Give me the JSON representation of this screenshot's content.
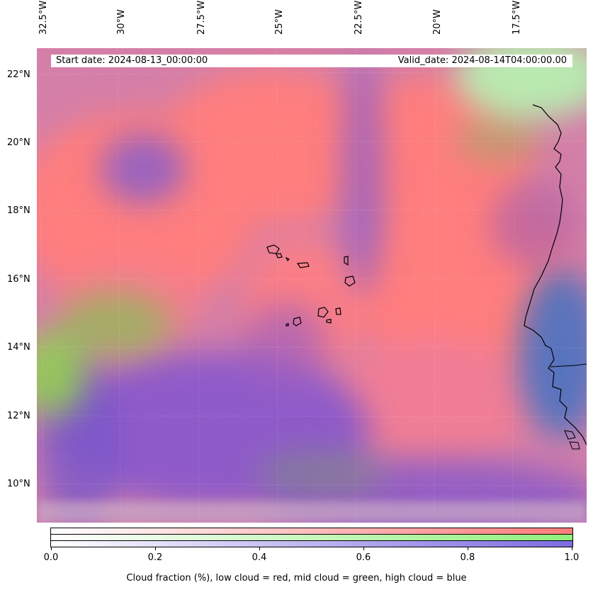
{
  "map": {
    "header": {
      "start_date": "Start date: 2024-08-13_00:00:00",
      "valid_date": "Valid_date: 2024-08-14T04:00:00.00"
    },
    "lon_labels": [
      "32.5°W",
      "30°W",
      "27.5°W",
      "25°W",
      "22.5°W",
      "20°W",
      "17.5°W"
    ],
    "lat_labels": [
      "22°N",
      "20°N",
      "18°N",
      "16°N",
      "14°N",
      "12°N",
      "10°N"
    ],
    "colors": {
      "low_cloud": "#ff7b7b",
      "mid_cloud": "#8fef7a",
      "high_cloud": "#7b6ce0",
      "coastline": "#000000"
    }
  },
  "colorbar": {
    "ticks": [
      "0.0",
      "0.2",
      "0.4",
      "0.6",
      "0.8",
      "1.0"
    ],
    "caption": "Cloud fraction (%), low cloud = red, mid cloud = green, high cloud = blue"
  }
}
